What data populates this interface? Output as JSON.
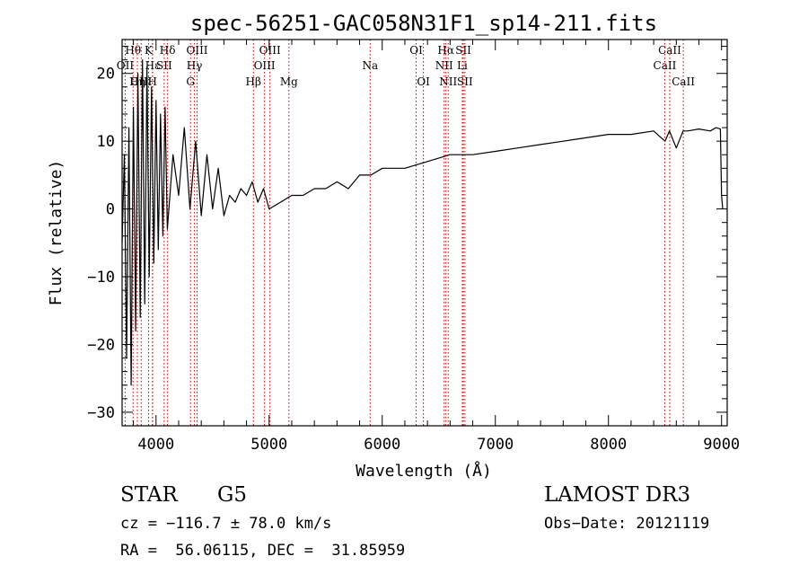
{
  "chart_data": {
    "type": "line",
    "title": "spec-56251-GAC058N31F1_sp14-211.fits",
    "xlabel": "Wavelength (Å)",
    "ylabel": "Flux (relative)",
    "xlim": [
      3700,
      9050
    ],
    "ylim": [
      -32,
      25
    ],
    "xticks": [
      4000,
      5000,
      6000,
      7000,
      8000,
      9000
    ],
    "xtick_labels": [
      "4000",
      "5000",
      "6000",
      "7000",
      "8000",
      "9000"
    ],
    "yticks": [
      -30,
      -20,
      -10,
      0,
      10,
      20
    ],
    "ytick_labels": [
      "−30",
      "−20",
      "−10",
      "0",
      "10",
      "20"
    ],
    "grid": false,
    "series": [
      {
        "name": "spectrum",
        "x": [
          3700,
          3720,
          3740,
          3760,
          3780,
          3800,
          3820,
          3840,
          3860,
          3880,
          3900,
          3920,
          3940,
          3960,
          3980,
          4000,
          4020,
          4040,
          4060,
          4080,
          4100,
          4150,
          4200,
          4250,
          4300,
          4350,
          4400,
          4450,
          4500,
          4550,
          4600,
          4650,
          4700,
          4750,
          4800,
          4850,
          4900,
          4950,
          5000,
          5100,
          5200,
          5300,
          5400,
          5500,
          5600,
          5700,
          5800,
          5900,
          6000,
          6200,
          6400,
          6600,
          6800,
          7000,
          7200,
          7400,
          7600,
          7800,
          8000,
          8200,
          8400,
          8500,
          8540,
          8600,
          8660,
          8700,
          8800,
          8900,
          8950,
          8990,
          9000,
          9010
        ],
        "y": [
          -5,
          8,
          -22,
          12,
          -26,
          15,
          -18,
          20,
          -16,
          22,
          -14,
          21,
          -10,
          18,
          -8,
          16,
          -6,
          14,
          -4,
          15,
          -3,
          8,
          2,
          12,
          0,
          10,
          -1,
          8,
          0,
          6,
          -1,
          2,
          1,
          3,
          2,
          4,
          1,
          3,
          0,
          1,
          2,
          2,
          3,
          3,
          4,
          3,
          5,
          5,
          6,
          6,
          7,
          8,
          8,
          8.5,
          9,
          9.5,
          10,
          10.5,
          11,
          11,
          11.5,
          10,
          11.5,
          9,
          11.5,
          11.5,
          11.8,
          11.5,
          12,
          11.8,
          2,
          0
        ],
        "color": "#000000"
      }
    ],
    "annotations": [
      {
        "label": "Hθ",
        "x": 3797,
        "row": 1
      },
      {
        "label": "K",
        "x": 3934,
        "row": 1
      },
      {
        "label": "Hδ",
        "x": 4102,
        "row": 1
      },
      {
        "label": "OIII",
        "x": 4363,
        "row": 1
      },
      {
        "label": "OIII",
        "x": 5007,
        "row": 1
      },
      {
        "label": "OI",
        "x": 6300,
        "row": 1
      },
      {
        "label": "Hα",
        "x": 6563,
        "row": 1
      },
      {
        "label": "SII",
        "x": 6717,
        "row": 1
      },
      {
        "label": "CaII",
        "x": 8542,
        "row": 1
      },
      {
        "label": "OII",
        "x": 3727,
        "row": 2
      },
      {
        "label": "Hε",
        "x": 3970,
        "row": 2
      },
      {
        "label": "SII",
        "x": 4072,
        "row": 2
      },
      {
        "label": "Hγ",
        "x": 4340,
        "row": 2
      },
      {
        "label": "OIII",
        "x": 4959,
        "row": 2
      },
      {
        "label": "Na",
        "x": 5893,
        "row": 2
      },
      {
        "label": "NII",
        "x": 6548,
        "row": 2
      },
      {
        "label": "Li",
        "x": 6708,
        "row": 2
      },
      {
        "label": "CaII",
        "x": 8498,
        "row": 2
      },
      {
        "label": "OIII",
        "x": 3869,
        "row": 3
      },
      {
        "label": "Hη",
        "x": 3835,
        "row": 3
      },
      {
        "label": "H",
        "x": 3968,
        "row": 3
      },
      {
        "label": "G",
        "x": 4305,
        "row": 3
      },
      {
        "label": "Hβ",
        "x": 4861,
        "row": 3
      },
      {
        "label": "Mg",
        "x": 5175,
        "row": 3
      },
      {
        "label": "OI",
        "x": 6364,
        "row": 3
      },
      {
        "label": "NII",
        "x": 6583,
        "row": 3
      },
      {
        "label": "SII",
        "x": 6731,
        "row": 3
      },
      {
        "label": "CaII",
        "x": 8662,
        "row": 3
      }
    ]
  },
  "info": {
    "class_label": "STAR",
    "subclass_label": "G5",
    "survey_label": "LAMOST DR3",
    "cz_text": "cz = −116.7 ± 78.0 km/s",
    "obs_date_text": "Obs−Date: 20121119",
    "radec_text": "RA =  56.06115, DEC =  31.85959"
  },
  "colors": {
    "line_marker": "#c00000",
    "spectrum": "#000000",
    "axes": "#000000"
  }
}
